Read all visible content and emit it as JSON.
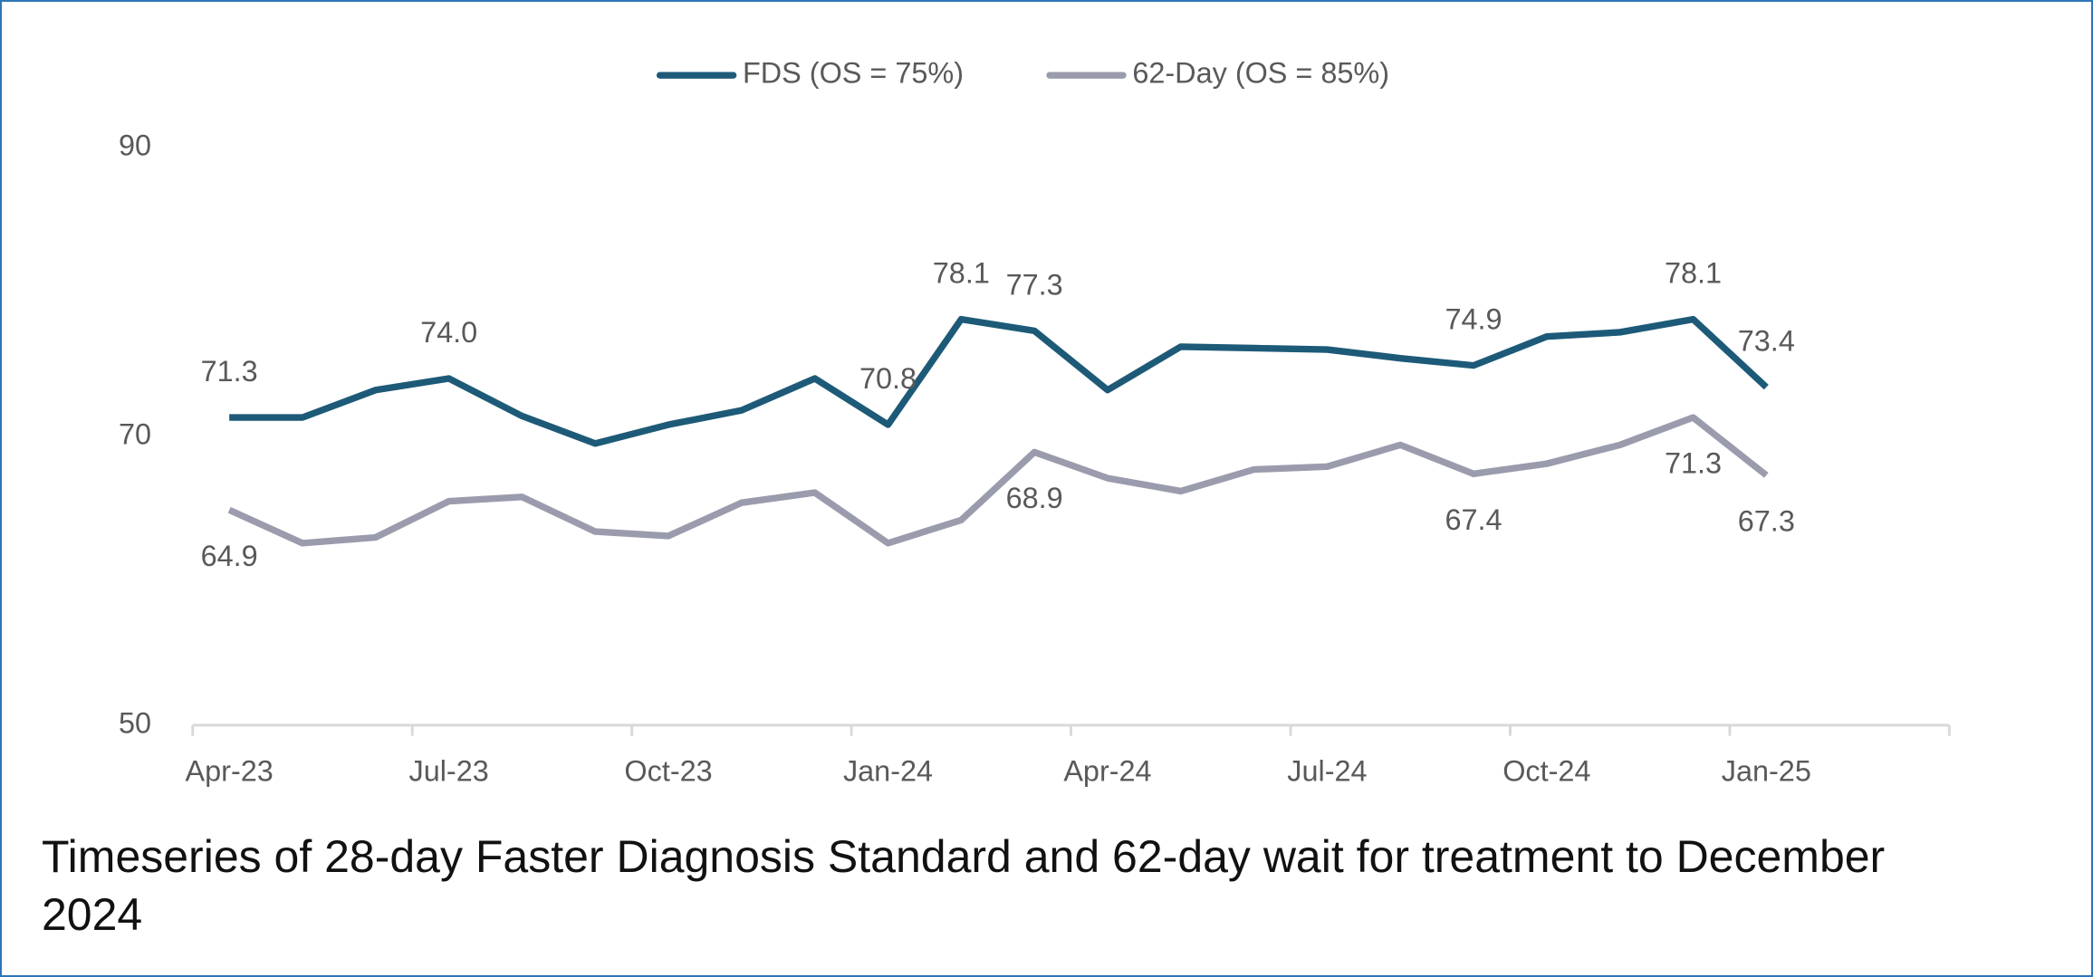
{
  "chart_data": {
    "type": "line",
    "title": "Timeseries of 28-day Faster Diagnosis Standard and 62-day wait for treatment to December 2024",
    "categories": [
      "Apr-23",
      null,
      null,
      "Jul-23",
      null,
      null,
      "Oct-23",
      null,
      null,
      "Jan-24",
      null,
      null,
      "Apr-24",
      null,
      null,
      "Jul-24",
      null,
      null,
      "Oct-24",
      null,
      null,
      "Jan-25",
      null,
      null
    ],
    "series": [
      {
        "name": "FDS (OS = 75%)",
        "color": "#1d5a78",
        "values": [
          71.3,
          71.3,
          73.2,
          74.0,
          71.4,
          69.5,
          70.8,
          71.8,
          74.0,
          70.8,
          78.1,
          77.3,
          73.2,
          76.2,
          76.1,
          76.0,
          75.4,
          74.9,
          76.9,
          77.2,
          78.1,
          73.4,
          null,
          null
        ],
        "value_labels": [
          "71.3",
          null,
          null,
          "74.0",
          null,
          null,
          null,
          null,
          null,
          "70.8",
          "78.1",
          "77.3",
          null,
          null,
          null,
          null,
          null,
          "74.9",
          null,
          null,
          "78.1",
          "73.4",
          null,
          null
        ]
      },
      {
        "name": "62-Day (OS = 85%)",
        "color": "#9a9cad",
        "values": [
          64.9,
          62.6,
          63.0,
          65.5,
          65.8,
          63.4,
          63.1,
          65.4,
          66.1,
          62.6,
          64.2,
          68.9,
          67.1,
          66.2,
          67.7,
          67.9,
          69.4,
          67.4,
          68.1,
          69.4,
          71.3,
          67.3,
          null,
          null
        ],
        "value_labels": [
          "64.9",
          null,
          null,
          null,
          null,
          null,
          null,
          null,
          null,
          null,
          null,
          "68.9",
          null,
          null,
          null,
          null,
          null,
          "67.4",
          null,
          null,
          "71.3",
          "67.3",
          null,
          null
        ]
      }
    ],
    "ylim": [
      50,
      90
    ],
    "yticks": [
      50,
      70,
      90
    ],
    "grid": false,
    "legend": "top"
  }
}
